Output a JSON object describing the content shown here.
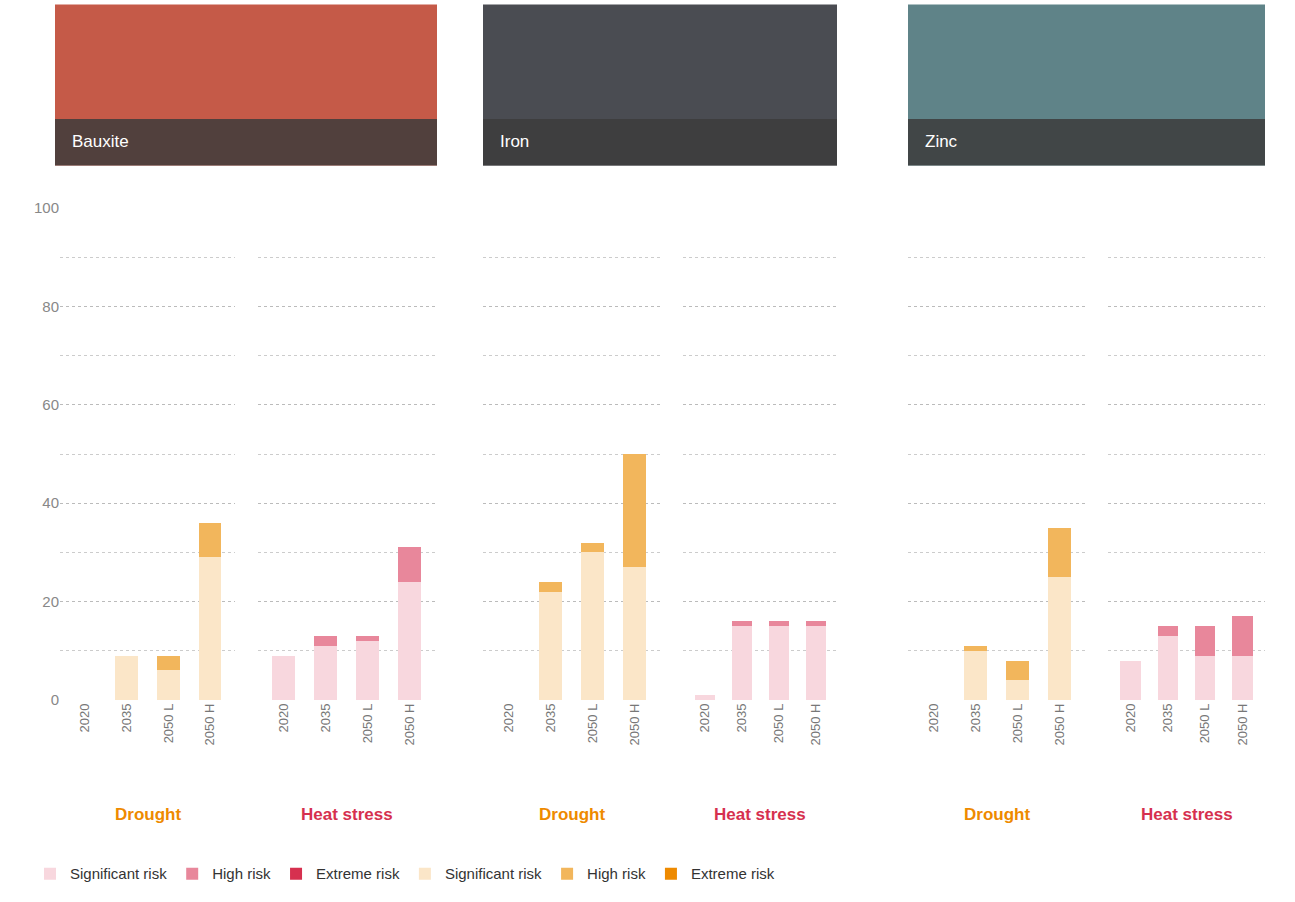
{
  "chart_data": {
    "type": "bar",
    "stacked": true,
    "grid": true,
    "legend": "bottom",
    "categories": [
      "2020",
      "2035",
      "2050 L",
      "2050 H"
    ],
    "ylim": [
      0,
      100
    ],
    "yticks": [
      0,
      20,
      40,
      60,
      80,
      100
    ],
    "panels": [
      {
        "title": "Bauxite",
        "subplots": [
          {
            "title": "Drought",
            "series": [
              {
                "name": "Significant risk",
                "color": "#fbe6c8",
                "values": [
                  0,
                  9,
                  6,
                  29
                ]
              },
              {
                "name": "High risk",
                "color": "#f2b65c",
                "values": [
                  0,
                  0,
                  3,
                  7
                ]
              },
              {
                "name": "Extreme risk",
                "color": "#ee8a00",
                "values": [
                  0,
                  0,
                  0,
                  0
                ]
              }
            ]
          },
          {
            "title": "Heat stress",
            "series": [
              {
                "name": "Significant risk",
                "color": "#f8d7de",
                "values": [
                  9,
                  11,
                  12,
                  24
                ]
              },
              {
                "name": "High risk",
                "color": "#e8879b",
                "values": [
                  0,
                  2,
                  1,
                  7
                ]
              },
              {
                "name": "Extreme risk",
                "color": "#d6304f",
                "values": [
                  0,
                  0,
                  0,
                  0
                ]
              }
            ]
          }
        ]
      },
      {
        "title": "Iron",
        "subplots": [
          {
            "title": "Drought",
            "series": [
              {
                "name": "Significant risk",
                "color": "#fbe6c8",
                "values": [
                  0,
                  22,
                  30,
                  27
                ]
              },
              {
                "name": "High risk",
                "color": "#f2b65c",
                "values": [
                  0,
                  2,
                  2,
                  23
                ]
              },
              {
                "name": "Extreme risk",
                "color": "#ee8a00",
                "values": [
                  0,
                  0,
                  0,
                  0
                ]
              }
            ]
          },
          {
            "title": "Heat stress",
            "series": [
              {
                "name": "Significant risk",
                "color": "#f8d7de",
                "values": [
                  1,
                  15,
                  15,
                  15
                ]
              },
              {
                "name": "High risk",
                "color": "#e8879b",
                "values": [
                  0,
                  1,
                  1,
                  1
                ]
              },
              {
                "name": "Extreme risk",
                "color": "#d6304f",
                "values": [
                  0,
                  0,
                  0,
                  0
                ]
              }
            ]
          }
        ]
      },
      {
        "title": "Zinc",
        "subplots": [
          {
            "title": "Drought",
            "series": [
              {
                "name": "Significant risk",
                "color": "#fbe6c8",
                "values": [
                  0,
                  10,
                  4,
                  25
                ]
              },
              {
                "name": "High risk",
                "color": "#f2b65c",
                "values": [
                  0,
                  1,
                  4,
                  10
                ]
              },
              {
                "name": "Extreme risk",
                "color": "#ee8a00",
                "values": [
                  0,
                  0,
                  0,
                  0
                ]
              }
            ]
          },
          {
            "title": "Heat stress",
            "series": [
              {
                "name": "Significant risk",
                "color": "#f8d7de",
                "values": [
                  8,
                  13,
                  9,
                  9
                ]
              },
              {
                "name": "High risk",
                "color": "#e8879b",
                "values": [
                  0,
                  2,
                  6,
                  8
                ]
              },
              {
                "name": "Extreme risk",
                "color": "#d6304f",
                "values": [
                  0,
                  0,
                  0,
                  0
                ]
              }
            ]
          }
        ]
      }
    ]
  }
}
